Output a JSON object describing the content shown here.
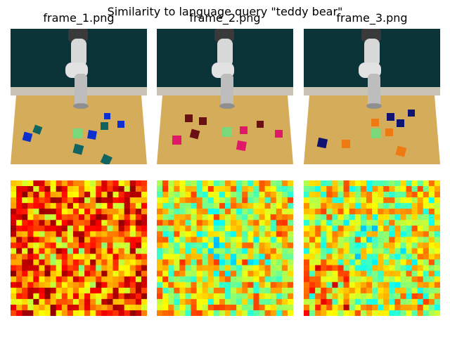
{
  "figure": {
    "suptitle": "Similarity to language query \"teddy bear\""
  },
  "frames": [
    {
      "title": "frame_1.png",
      "cube_color": "#0d2fd0",
      "cube_color2": "#11645f",
      "heat_bias": 0.78,
      "hot_corner": "none"
    },
    {
      "title": "frame_2.png",
      "cube_color": "#6a0f14",
      "cube_color2": "#e0186a",
      "heat_bias": 0.62,
      "hot_corner": "none"
    },
    {
      "title": "frame_3.png",
      "cube_color": "#0e1470",
      "cube_color2": "#f07a12",
      "heat_bias": 0.6,
      "hot_corner": "bottom-left"
    }
  ],
  "colors": {
    "wall": "#0b3438",
    "table": "#d4ac5a",
    "robot": "#cfcfcf",
    "target_cube": "#7ad77a"
  }
}
